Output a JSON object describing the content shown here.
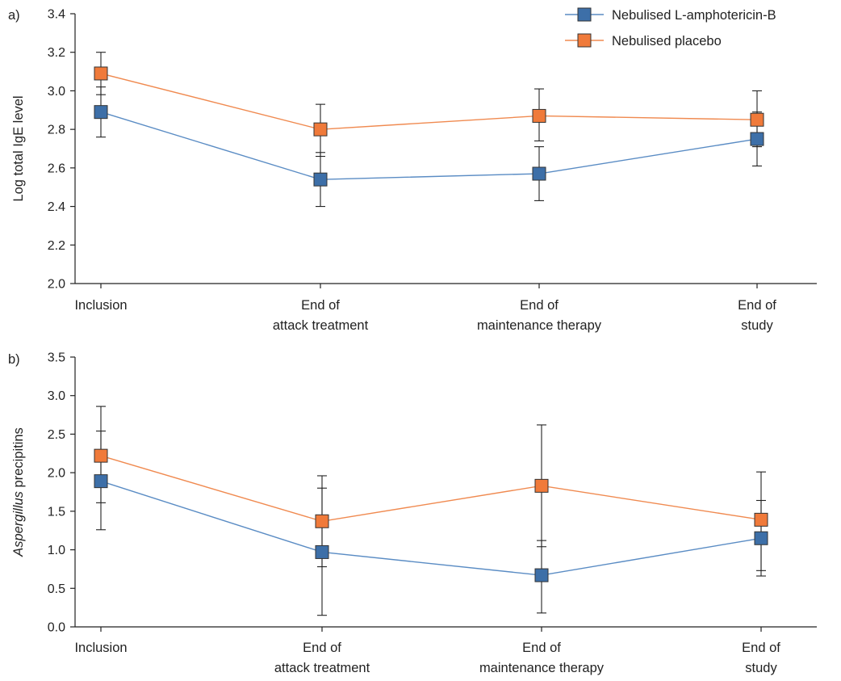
{
  "legend": {
    "items": [
      {
        "label": "Nebulised L-amphotericin-B",
        "color": "#3d6fa8",
        "line": "#5a8cc4"
      },
      {
        "label": "Nebulised placebo",
        "color": "#f07a3a",
        "line": "#f08a50"
      }
    ]
  },
  "chart_data": [
    {
      "type": "line",
      "panel_label": "a)",
      "ylabel": "Log total IgE level",
      "ylabel_italic": "",
      "ylim": [
        2.0,
        3.4
      ],
      "yticks": [
        2.0,
        2.2,
        2.4,
        2.6,
        2.8,
        3.0,
        3.2,
        3.4
      ],
      "ytick_labels": [
        "2.0",
        "2.2",
        "2.4",
        "2.6",
        "2.8",
        "3.0",
        "3.2",
        "3.4"
      ],
      "categories": [
        [
          "Inclusion"
        ],
        [
          "End of",
          "attack treatment"
        ],
        [
          "End of",
          "maintenance therapy"
        ],
        [
          "End of",
          "study"
        ]
      ],
      "series": [
        {
          "name": "Nebulised L-amphotericin-B",
          "color": "#3d6fa8",
          "line": "#5a8cc4",
          "values": [
            2.89,
            2.54,
            2.57,
            2.75
          ],
          "err_low": [
            2.76,
            2.4,
            2.43,
            2.61
          ],
          "err_high": [
            3.02,
            2.68,
            2.71,
            2.89
          ]
        },
        {
          "name": "Nebulised placebo",
          "color": "#f07a3a",
          "line": "#f08a50",
          "values": [
            3.09,
            2.8,
            2.87,
            2.85
          ],
          "err_low": [
            2.98,
            2.66,
            2.74,
            2.71
          ],
          "err_high": [
            3.2,
            2.93,
            3.01,
            3.0
          ]
        }
      ]
    },
    {
      "type": "line",
      "panel_label": "b)",
      "ylabel": " precipitins",
      "ylabel_italic": "Aspergillus",
      "ylim": [
        0.0,
        3.5
      ],
      "yticks": [
        0.0,
        0.5,
        1.0,
        1.5,
        2.0,
        2.5,
        3.0,
        3.5
      ],
      "ytick_labels": [
        "0.0",
        "0.5",
        "1.0",
        "1.5",
        "2.0",
        "2.5",
        "3.0",
        "3.5"
      ],
      "categories": [
        [
          "Inclusion"
        ],
        [
          "End of",
          "attack treatment"
        ],
        [
          "End of",
          "maintenance therapy"
        ],
        [
          "End of",
          "study"
        ]
      ],
      "series": [
        {
          "name": "Nebulised L-amphotericin-B",
          "color": "#3d6fa8",
          "line": "#5a8cc4",
          "values": [
            1.89,
            0.97,
            0.67,
            1.15
          ],
          "err_low": [
            1.26,
            0.15,
            0.18,
            0.66
          ],
          "err_high": [
            2.54,
            1.8,
            1.12,
            1.64
          ]
        },
        {
          "name": "Nebulised placebo",
          "color": "#f07a3a",
          "line": "#f08a50",
          "values": [
            2.22,
            1.37,
            1.83,
            1.39
          ],
          "err_low": [
            1.61,
            0.78,
            1.04,
            0.73
          ],
          "err_high": [
            2.86,
            1.96,
            2.62,
            2.01
          ]
        }
      ]
    }
  ]
}
